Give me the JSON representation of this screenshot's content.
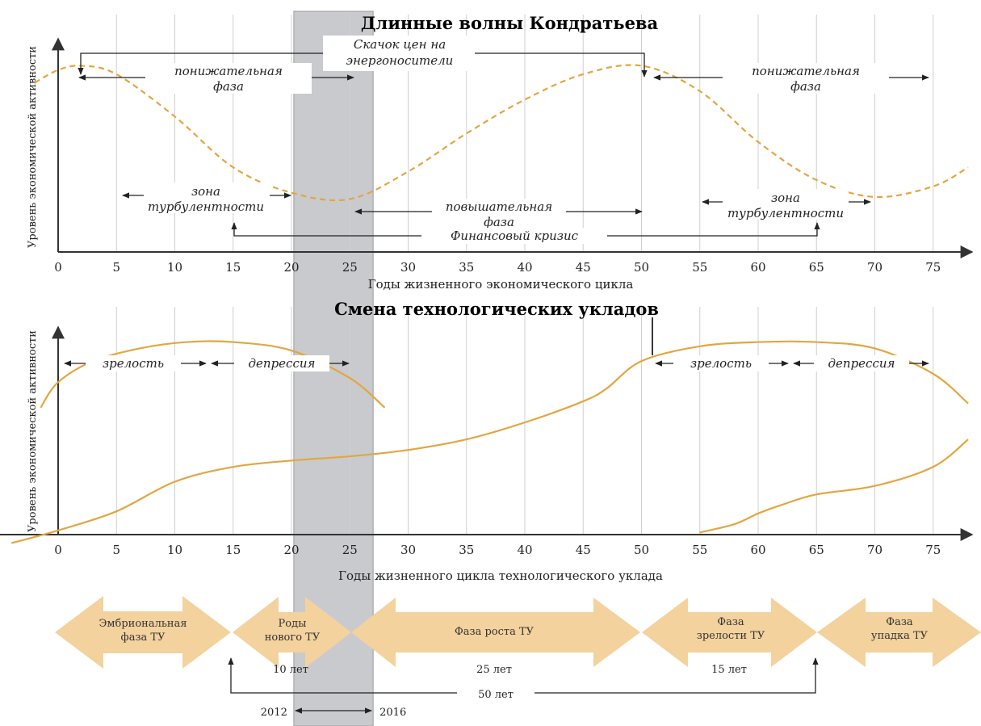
{
  "chart_data": [
    {
      "type": "line",
      "title": "Длинные волны Кондратьева",
      "xlabel": "Годы жизненного экономического цикла",
      "ylabel": "Уровень экономической активности",
      "xlim": [
        0,
        78
      ],
      "x_ticks": [
        0,
        5,
        10,
        15,
        20,
        25,
        30,
        35,
        40,
        45,
        50,
        55,
        60,
        65,
        70,
        75
      ],
      "series": [
        {
          "style": "dashed",
          "x": [
            -2,
            0,
            2,
            5,
            10,
            15,
            20,
            25,
            30,
            35,
            40,
            45,
            50,
            55,
            60,
            65,
            70,
            75,
            78
          ],
          "y": [
            0.8,
            0.86,
            0.88,
            0.84,
            0.64,
            0.4,
            0.28,
            0.25,
            0.38,
            0.56,
            0.72,
            0.84,
            0.88,
            0.76,
            0.52,
            0.34,
            0.26,
            0.31,
            0.4
          ]
        }
      ],
      "annotations": {
        "energy_shock": [
          "Скачок цен на",
          "энергоносители"
        ],
        "down_phase_1": [
          "понижательная",
          "фаза"
        ],
        "down_phase_2": [
          "понижательная",
          "фаза"
        ],
        "turbulence_1": [
          "зона",
          "турбулентности"
        ],
        "turbulence_2": [
          "зона",
          "турбулентности"
        ],
        "up_phase": [
          "повышательная",
          "фаза"
        ],
        "financial_crisis": "Финансовый кризис"
      }
    },
    {
      "type": "line",
      "title": "Смена технологических укладов",
      "xlabel": "Годы жизненного цикла технологического уклада",
      "ylabel": "Уровень экономической активности",
      "xlim": [
        0,
        78
      ],
      "x_ticks": [
        0,
        5,
        10,
        15,
        20,
        25,
        30,
        35,
        40,
        45,
        50,
        55,
        60,
        65,
        70,
        75
      ],
      "series": [
        {
          "x": [
            -1.5,
            0,
            3,
            7,
            11,
            15,
            20,
            25,
            28
          ],
          "y": [
            0.6,
            0.72,
            0.82,
            0.88,
            0.91,
            0.91,
            0.87,
            0.74,
            0.6
          ]
        },
        {
          "x": [
            -4,
            0,
            5,
            10,
            15,
            20,
            25,
            30,
            35,
            40,
            45,
            47,
            50,
            55,
            60,
            65,
            70,
            75,
            78
          ],
          "y": [
            -0.04,
            0.02,
            0.11,
            0.25,
            0.32,
            0.35,
            0.37,
            0.4,
            0.45,
            0.53,
            0.63,
            0.69,
            0.82,
            0.89,
            0.91,
            0.91,
            0.88,
            0.76,
            0.62
          ]
        },
        {
          "x": [
            55,
            58,
            60,
            62,
            65,
            70,
            75,
            78
          ],
          "y": [
            0.01,
            0.05,
            0.1,
            0.14,
            0.19,
            0.23,
            0.32,
            0.45
          ]
        }
      ],
      "annotations": {
        "maturity": "зрелость",
        "depression": "депрессия"
      }
    }
  ],
  "highlight": {
    "x_from": 20.2,
    "x_to": 27,
    "label_from": "2012",
    "label_to": "2016",
    "color": "#c9cacd"
  },
  "phases": [
    {
      "text": [
        "Эмбриональная",
        "фаза ТУ"
      ]
    },
    {
      "text": [
        "Роды",
        "нового ТУ"
      ]
    },
    {
      "text": [
        "Фаза роста ТУ"
      ]
    },
    {
      "text": [
        "Фаза",
        "зрелости ТУ"
      ]
    },
    {
      "text": [
        "Фаза",
        "упадка ТУ"
      ]
    }
  ],
  "durations": {
    "birth": "10 лет",
    "growth": "25 лет",
    "maturity": "15 лет",
    "total": "50 лет"
  },
  "colors": {
    "curve": "#e2a640",
    "arrow_fill": "#f3d29e",
    "band": "#c9cacd",
    "grid": "#cfcfcf",
    "axis": "#444444"
  }
}
